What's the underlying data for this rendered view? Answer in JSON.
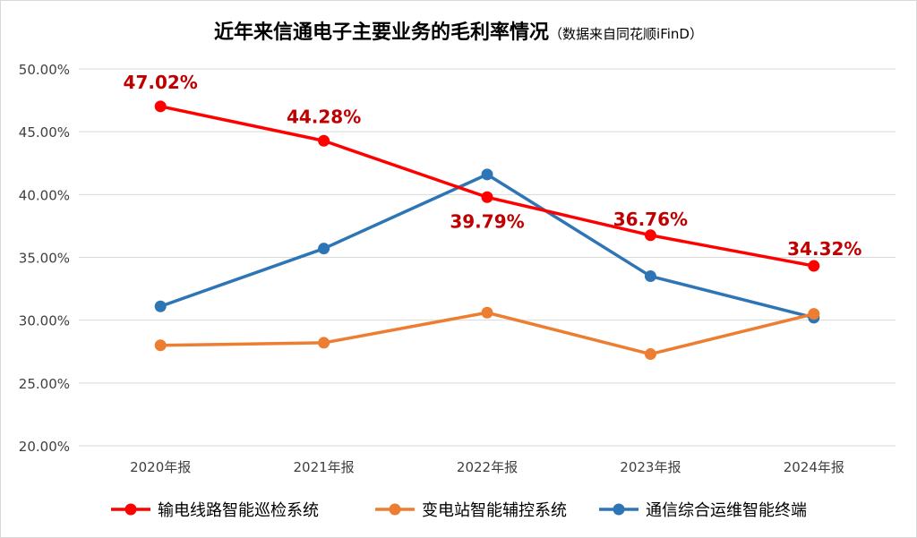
{
  "title": "近年来信通电子主要业务的毛利率情况",
  "subtitle": "（数据来自同花顺iFinD）",
  "chart_data": {
    "type": "line",
    "categories": [
      "2020年报",
      "2021年报",
      "2022年报",
      "2023年报",
      "2024年报"
    ],
    "ylim": [
      20,
      50
    ],
    "yticks": [
      20,
      25,
      30,
      35,
      40,
      45,
      50
    ],
    "ytick_labels": [
      "20.00%",
      "25.00%",
      "30.00%",
      "35.00%",
      "40.00%",
      "45.00%",
      "50.00%"
    ],
    "grid": true,
    "legend_position": "bottom",
    "series": [
      {
        "name": "输电线路智能巡检系统",
        "color": "#ff0000",
        "values": [
          47.02,
          44.28,
          39.79,
          36.76,
          34.32
        ],
        "data_labels": [
          "47.02%",
          "44.28%",
          "39.79%",
          "36.76%",
          "34.32%"
        ],
        "label_color": "#c00000"
      },
      {
        "name": "变电站智能辅控系统",
        "color": "#ed7d31",
        "values": [
          28.0,
          28.2,
          30.6,
          27.3,
          30.5
        ]
      },
      {
        "name": "通信综合运维智能终端",
        "color": "#2e75b6",
        "values": [
          31.1,
          35.7,
          41.6,
          33.5,
          30.2
        ]
      }
    ]
  }
}
